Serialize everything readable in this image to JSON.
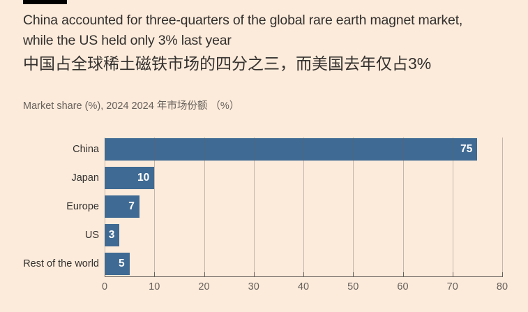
{
  "figure": {
    "background_color": "#fcebdb",
    "marker_color": "#000000"
  },
  "header": {
    "title_line1": "China accounted for three-quarters of the global rare earth magnet market,",
    "title_line2": "while the US held only 3% last year",
    "title_zh": "中国占全球稀土磁铁市场的四分之三，而美国去年仅占3%",
    "subtitle": "Market share (%), 2024  2024 年市场份额 （%）"
  },
  "chart_data": {
    "type": "bar",
    "orientation": "horizontal",
    "title": "China accounted for three-quarters of the global rare earth magnet market, while the US held only 3% last year",
    "title_zh": "中国占全球稀土磁铁市场的四分之三，而美国去年仅占3%",
    "subtitle": "Market share (%), 2024  2024 年市场份额 （%）",
    "categories": [
      "China",
      "Japan",
      "Europe",
      "US",
      "Rest of the world"
    ],
    "values": [
      75,
      10,
      7,
      3,
      5
    ],
    "value_labels": [
      "75",
      "10",
      "7",
      "3",
      "5"
    ],
    "xlabel": "",
    "ylabel": "",
    "xlim": [
      0,
      80
    ],
    "xticks": [
      0,
      10,
      20,
      30,
      40,
      50,
      60,
      70,
      80
    ],
    "grid": "vertical",
    "legend": "none",
    "colors": {
      "bar": "#3f6a93",
      "value_label": "#ffffff",
      "gridline": "rgba(102,96,91,0.38)",
      "axis_line": "#66605b",
      "tick_label": "#66605b",
      "category_label": "#33302e",
      "title": "#33302e",
      "subtitle": "#66605b"
    }
  }
}
